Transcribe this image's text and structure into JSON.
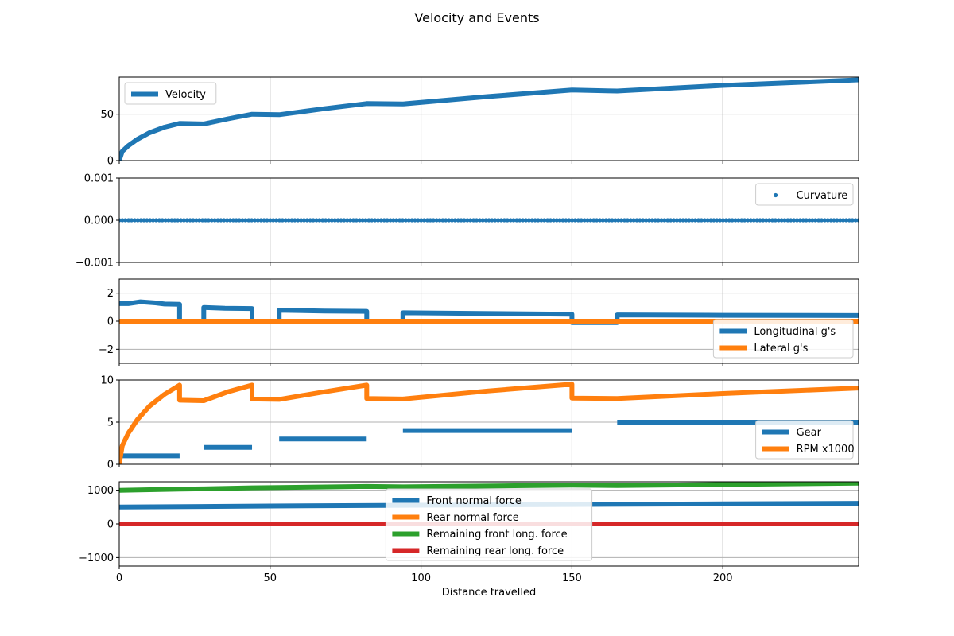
{
  "chart_data": {
    "type": "line",
    "title": "Velocity and Events",
    "xlabel": "Distance travelled",
    "xlim": [
      0,
      245
    ],
    "xticks": [
      0,
      50,
      100,
      150,
      200
    ],
    "grid": true,
    "subplots": [
      {
        "id": "velocity",
        "ylim": [
          0,
          90
        ],
        "yticks": [
          0,
          50
        ],
        "ytick_labels": [
          "0",
          "50"
        ],
        "legend_position": "upper-left",
        "series": [
          {
            "name": "Velocity",
            "style": "line",
            "color": "#1f77b4",
            "points": [
              [
                0,
                0
              ],
              [
                1,
                10
              ],
              [
                3,
                16
              ],
              [
                6,
                23
              ],
              [
                10,
                30
              ],
              [
                15,
                36
              ],
              [
                20,
                40
              ],
              [
                28,
                39.5
              ],
              [
                36,
                45
              ],
              [
                44,
                50
              ],
              [
                53,
                49.5
              ],
              [
                68,
                56
              ],
              [
                82,
                61.5
              ],
              [
                94,
                61
              ],
              [
                122,
                69
              ],
              [
                150,
                76
              ],
              [
                165,
                75
              ],
              [
                200,
                81
              ],
              [
                245,
                87
              ]
            ]
          }
        ]
      },
      {
        "id": "curvature",
        "ylim": [
          -0.001,
          0.001
        ],
        "yticks": [
          -0.001,
          0.0,
          0.001
        ],
        "ytick_labels": [
          "−0.001",
          "0.000",
          "0.001"
        ],
        "legend_position": "upper-right",
        "series": [
          {
            "name": "Curvature",
            "style": "dots",
            "color": "#1f77b4",
            "points": [
              [
                0,
                0
              ],
              [
                245,
                0
              ]
            ]
          }
        ]
      },
      {
        "id": "gforces",
        "ylim": [
          -3,
          3
        ],
        "yticks": [
          -2,
          0,
          2
        ],
        "ytick_labels": [
          "−2",
          "0",
          "2"
        ],
        "legend_position": "lower-right",
        "series": [
          {
            "name": "Longitudinal g's",
            "style": "line",
            "color": "#1f77b4",
            "points": [
              [
                0,
                1.25
              ],
              [
                3,
                1.25
              ],
              [
                7,
                1.38
              ],
              [
                12,
                1.3
              ],
              [
                15,
                1.22
              ],
              [
                20,
                1.2
              ],
              [
                20,
                -0.05
              ],
              [
                28,
                -0.05
              ],
              [
                28,
                0.98
              ],
              [
                35,
                0.92
              ],
              [
                44,
                0.9
              ],
              [
                44,
                -0.05
              ],
              [
                53,
                -0.05
              ],
              [
                53,
                0.78
              ],
              [
                68,
                0.72
              ],
              [
                82,
                0.7
              ],
              [
                82,
                -0.05
              ],
              [
                94,
                -0.05
              ],
              [
                94,
                0.6
              ],
              [
                120,
                0.55
              ],
              [
                150,
                0.5
              ],
              [
                150,
                -0.1
              ],
              [
                165,
                -0.1
              ],
              [
                165,
                0.45
              ],
              [
                200,
                0.42
              ],
              [
                245,
                0.4
              ]
            ]
          },
          {
            "name": "Lateral g's",
            "style": "line",
            "color": "#ff7f0e",
            "points": [
              [
                0,
                0
              ],
              [
                245,
                0
              ]
            ]
          }
        ]
      },
      {
        "id": "gear-rpm",
        "ylim": [
          0,
          10
        ],
        "yticks": [
          0,
          5,
          10
        ],
        "ytick_labels": [
          "0",
          "5",
          "10"
        ],
        "legend_position": "lower-right",
        "series": [
          {
            "name": "Gear",
            "style": "segments",
            "color": "#1f77b4",
            "segments": [
              [
                [
                  0,
                  1
                ],
                [
                  20,
                  1
                ]
              ],
              [
                [
                  28,
                  2
                ],
                [
                  44,
                  2
                ]
              ],
              [
                [
                  53,
                  3
                ],
                [
                  82,
                  3
                ]
              ],
              [
                [
                  94,
                  4
                ],
                [
                  150,
                  4
                ]
              ],
              [
                [
                  165,
                  5
                ],
                [
                  245,
                  5
                ]
              ]
            ]
          },
          {
            "name": "RPM x1000",
            "style": "line",
            "color": "#ff7f0e",
            "points": [
              [
                0,
                0
              ],
              [
                1,
                2.2
              ],
              [
                3,
                3.7
              ],
              [
                6,
                5.3
              ],
              [
                10,
                6.9
              ],
              [
                15,
                8.3
              ],
              [
                20,
                9.4
              ],
              [
                20,
                7.6
              ],
              [
                28,
                7.55
              ],
              [
                36,
                8.6
              ],
              [
                44,
                9.4
              ],
              [
                44,
                7.75
              ],
              [
                53,
                7.7
              ],
              [
                68,
                8.6
              ],
              [
                82,
                9.4
              ],
              [
                82,
                7.8
              ],
              [
                94,
                7.75
              ],
              [
                122,
                8.7
              ],
              [
                150,
                9.5
              ],
              [
                150,
                7.85
              ],
              [
                165,
                7.8
              ],
              [
                200,
                8.4
              ],
              [
                245,
                9.05
              ]
            ]
          }
        ]
      },
      {
        "id": "forces",
        "ylim": [
          -1250,
          1250
        ],
        "yticks": [
          -1000,
          0,
          1000
        ],
        "ytick_labels": [
          "−1000",
          "0",
          "1000"
        ],
        "legend_position": "lower-center",
        "series": [
          {
            "name": "Front normal force",
            "style": "line",
            "color": "#1f77b4",
            "points": [
              [
                0,
                500
              ],
              [
                50,
                530
              ],
              [
                100,
                555
              ],
              [
                150,
                575
              ],
              [
                200,
                595
              ],
              [
                245,
                610
              ]
            ]
          },
          {
            "name": "Rear normal force",
            "style": "line",
            "color": "#ff7f0e",
            "points": [
              [
                0,
                0
              ],
              [
                245,
                0
              ]
            ]
          },
          {
            "name": "Remaining front long. force",
            "style": "line",
            "color": "#2ca02c",
            "points": [
              [
                0,
                995
              ],
              [
                20,
                1030
              ],
              [
                28,
                1040
              ],
              [
                44,
                1070
              ],
              [
                53,
                1080
              ],
              [
                82,
                1110
              ],
              [
                94,
                1100
              ],
              [
                150,
                1150
              ],
              [
                165,
                1140
              ],
              [
                245,
                1210
              ]
            ]
          },
          {
            "name": "Remaining rear long. force",
            "style": "line",
            "color": "#d62728",
            "points": [
              [
                0,
                0
              ],
              [
                245,
                0
              ]
            ]
          }
        ]
      }
    ]
  }
}
